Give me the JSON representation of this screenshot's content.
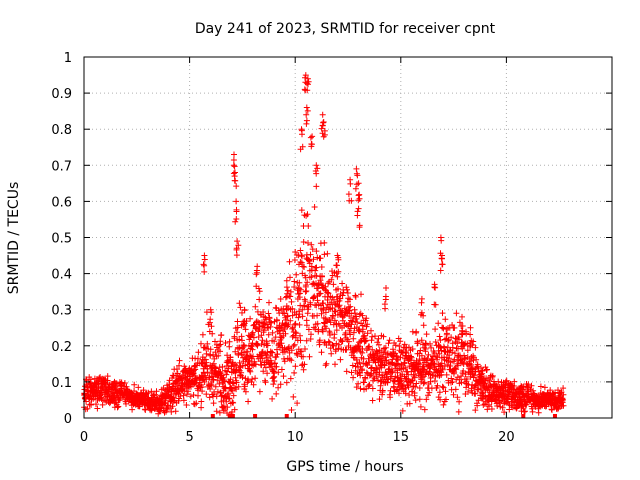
{
  "chart_data": {
    "type": "scatter",
    "title": "Day 241 of 2023, SRMTID for receiver cpnt",
    "xlabel": "GPS time / hours",
    "ylabel": "SRMTID / TECUs",
    "xlim": [
      0,
      25
    ],
    "ylim": [
      0,
      1
    ],
    "grid": true,
    "marker": "plus",
    "color": "#ff0000",
    "x_ticks": [
      0,
      5,
      10,
      15,
      20
    ],
    "x_tick_labels": [
      "0",
      "5",
      "10",
      "15",
      "20"
    ],
    "y_ticks": [
      0,
      0.1,
      0.2,
      0.3,
      0.4,
      0.5,
      0.6,
      0.7,
      0.8,
      0.9,
      1
    ],
    "y_tick_labels": [
      "0",
      "0.1",
      "0.2",
      "0.3",
      "0.4",
      "0.5",
      "0.6",
      "0.7",
      "0.8",
      "0.9",
      "1"
    ],
    "envelope": {
      "description_hours": "approximate median / spread of SRMTID over time, used to draw the dense point cloud",
      "t": [
        0,
        0.5,
        1,
        1.5,
        2,
        2.5,
        3,
        3.5,
        4,
        4.5,
        5,
        5.5,
        5.8,
        6.2,
        6.6,
        7,
        7.4,
        7.8,
        8.2,
        8.6,
        9,
        9.4,
        9.8,
        10.2,
        10.6,
        11,
        11.5,
        12,
        12.5,
        13,
        13.5,
        14,
        14.5,
        15,
        15.5,
        16,
        16.5,
        17,
        17.5,
        18,
        18.5,
        19,
        19.5,
        20,
        20.5,
        21,
        21.5,
        22,
        22.7
      ],
      "median": [
        0.06,
        0.08,
        0.08,
        0.07,
        0.07,
        0.05,
        0.05,
        0.04,
        0.06,
        0.1,
        0.11,
        0.11,
        0.16,
        0.12,
        0.1,
        0.12,
        0.2,
        0.15,
        0.22,
        0.2,
        0.18,
        0.22,
        0.25,
        0.32,
        0.36,
        0.34,
        0.3,
        0.28,
        0.25,
        0.22,
        0.16,
        0.15,
        0.14,
        0.13,
        0.14,
        0.14,
        0.15,
        0.16,
        0.17,
        0.16,
        0.12,
        0.08,
        0.07,
        0.07,
        0.06,
        0.06,
        0.05,
        0.05,
        0.05
      ],
      "spread": [
        0.03,
        0.03,
        0.03,
        0.03,
        0.02,
        0.02,
        0.02,
        0.02,
        0.03,
        0.04,
        0.04,
        0.05,
        0.08,
        0.06,
        0.06,
        0.08,
        0.1,
        0.08,
        0.1,
        0.08,
        0.08,
        0.1,
        0.12,
        0.16,
        0.16,
        0.14,
        0.1,
        0.1,
        0.1,
        0.1,
        0.07,
        0.06,
        0.06,
        0.06,
        0.07,
        0.07,
        0.07,
        0.07,
        0.08,
        0.07,
        0.05,
        0.04,
        0.03,
        0.03,
        0.03,
        0.03,
        0.02,
        0.02,
        0.02
      ]
    },
    "peaks": [
      {
        "x": 5.7,
        "y": 0.45
      },
      {
        "x": 6.0,
        "y": 0.3
      },
      {
        "x": 7.1,
        "y": 0.73
      },
      {
        "x": 7.15,
        "y": 0.68
      },
      {
        "x": 7.2,
        "y": 0.6
      },
      {
        "x": 7.25,
        "y": 0.49
      },
      {
        "x": 8.2,
        "y": 0.42
      },
      {
        "x": 10.3,
        "y": 0.8
      },
      {
        "x": 10.5,
        "y": 0.95
      },
      {
        "x": 10.6,
        "y": 0.94
      },
      {
        "x": 10.55,
        "y": 0.86
      },
      {
        "x": 10.8,
        "y": 0.78
      },
      {
        "x": 11.3,
        "y": 0.84
      },
      {
        "x": 11.35,
        "y": 0.82
      },
      {
        "x": 11.0,
        "y": 0.7
      },
      {
        "x": 12.6,
        "y": 0.66
      },
      {
        "x": 12.9,
        "y": 0.69
      },
      {
        "x": 13.0,
        "y": 0.65
      },
      {
        "x": 13.0,
        "y": 0.58
      },
      {
        "x": 14.3,
        "y": 0.36
      },
      {
        "x": 16.0,
        "y": 0.33
      },
      {
        "x": 16.6,
        "y": 0.37
      },
      {
        "x": 16.9,
        "y": 0.5
      },
      {
        "x": 16.95,
        "y": 0.45
      },
      {
        "x": 17.9,
        "y": 0.28
      },
      {
        "x": 18.3,
        "y": 0.25
      },
      {
        "x": 9.6,
        "y": 0.38
      },
      {
        "x": 12.0,
        "y": 0.45
      },
      {
        "x": 6.5,
        "y": 0.23
      },
      {
        "x": 7.6,
        "y": 0.3
      }
    ],
    "zero_markers": [
      6.1,
      6.9,
      7.05,
      8.1,
      9.6,
      20.8,
      22.3
    ]
  }
}
